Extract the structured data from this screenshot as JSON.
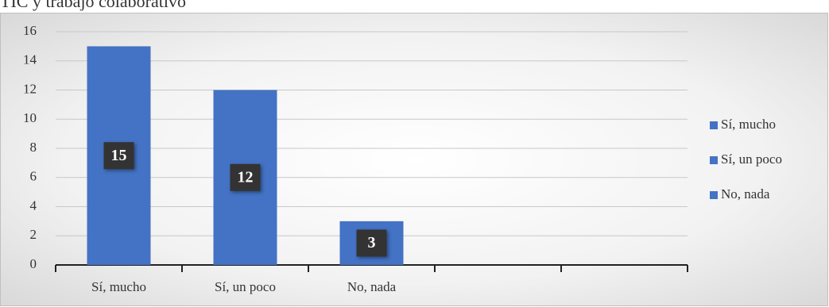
{
  "chart_data": {
    "type": "bar",
    "title": "TIC y trabajo colaborativo",
    "categories": [
      "Sí, mucho",
      "Sí, un poco",
      "No, nada",
      null,
      null
    ],
    "values": [
      15,
      12,
      3,
      null,
      null
    ],
    "color": "#4472c4",
    "ylim": [
      0,
      16
    ],
    "yticks": [
      0,
      2,
      4,
      6,
      8,
      10,
      12,
      14,
      16
    ],
    "grid": true,
    "legend": "right",
    "data_labels": true
  }
}
